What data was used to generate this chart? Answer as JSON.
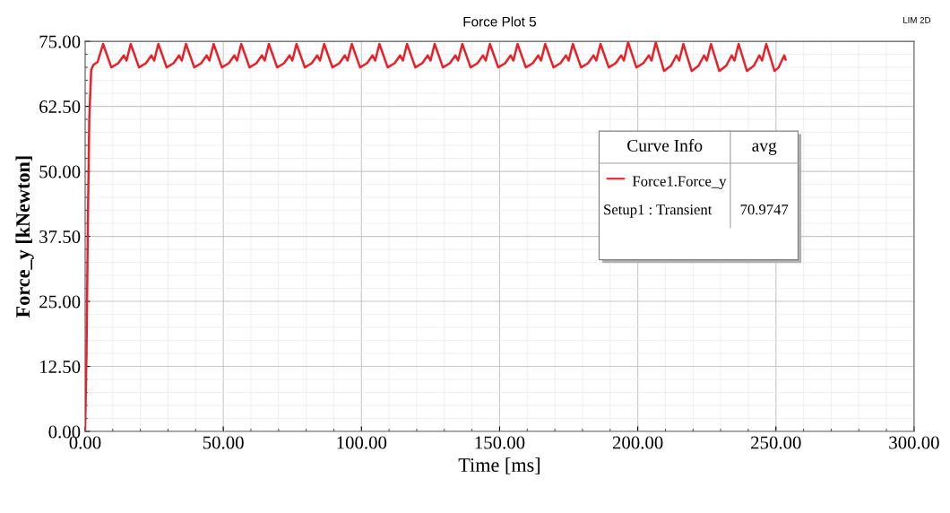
{
  "chart_data": {
    "type": "line",
    "title": "Force Plot 5",
    "xlabel": "Time [ms]",
    "ylabel": "Force_y [kNewton]",
    "annotations": [
      "LIM 2D",
      "Curve Info",
      "avg",
      "Setup1 : Transient",
      "70.9747"
    ],
    "legend": "right",
    "grid": true,
    "xlim": [
      0,
      300
    ],
    "ylim": [
      0,
      75
    ],
    "xticks": [
      {
        "value": 0,
        "label": "0.00"
      },
      {
        "value": 50,
        "label": "50.00"
      },
      {
        "value": 100,
        "label": "100.00"
      },
      {
        "value": 150,
        "label": "150.00"
      },
      {
        "value": 200,
        "label": "200.00"
      },
      {
        "value": 250,
        "label": "250.00"
      },
      {
        "value": 300,
        "label": "300.00"
      }
    ],
    "yticks": [
      {
        "value": 0,
        "label": "0.00"
      },
      {
        "value": 12.5,
        "label": "12.50"
      },
      {
        "value": 25,
        "label": "25.00"
      },
      {
        "value": 37.5,
        "label": "37.50"
      },
      {
        "value": 50,
        "label": "50.00"
      },
      {
        "value": 62.5,
        "label": "62.50"
      },
      {
        "value": 75,
        "label": "75.00"
      }
    ],
    "series": [
      {
        "name": "Force1.Force_y",
        "color": "#e8202a",
        "x": [
          0,
          0.5,
          1,
          1.5,
          2.2,
          3,
          4.5,
          6.5,
          9.5,
          12,
          14,
          15,
          16.5,
          19.5,
          22,
          24,
          25,
          26.5,
          29.5,
          32,
          34,
          35,
          36.5,
          39.5,
          42,
          44,
          45,
          46.5,
          49.5,
          52,
          54,
          55,
          56.5,
          59.5,
          62,
          64,
          65,
          66.5,
          69.5,
          72,
          74,
          75,
          76.5,
          79.5,
          82,
          84,
          85,
          86.5,
          89.5,
          92,
          94,
          95,
          96.5,
          99.5,
          102,
          104,
          105,
          106.5,
          109.5,
          112,
          114,
          115,
          116.5,
          119.5,
          122,
          124,
          125,
          126.5,
          129.5,
          132,
          134,
          135,
          136.5,
          139.5,
          142,
          144,
          145,
          146.5,
          149.5,
          152,
          154,
          155,
          156.5,
          159.5,
          162,
          164,
          165,
          166.5,
          169.5,
          172,
          174,
          175,
          176.5,
          179.5,
          182,
          184,
          185,
          186.5,
          189.5,
          192,
          194,
          195,
          196.5,
          199.5,
          202,
          204,
          205,
          206.5,
          209.5,
          212,
          214,
          215,
          216.5,
          219.5,
          222,
          224,
          225,
          226.5,
          229.5,
          232,
          234,
          235,
          236.5,
          239.5,
          242,
          244,
          245,
          246.5,
          249.5,
          251,
          253,
          253.5
        ],
        "values": [
          0,
          15,
          40,
          60,
          69.5,
          70.5,
          71,
          74.5,
          70,
          70.8,
          72.3,
          71.3,
          74.5,
          70,
          70.8,
          72.3,
          71.3,
          74.5,
          70,
          70.8,
          72.3,
          71.3,
          74.5,
          70,
          70.8,
          72.3,
          71.3,
          74.5,
          70,
          70.8,
          72.3,
          71.3,
          74.5,
          70,
          70.8,
          72.3,
          71.3,
          74.5,
          70,
          70.8,
          72.3,
          71.3,
          74.5,
          70,
          70.8,
          72.3,
          71.3,
          74.5,
          70,
          70.8,
          72.3,
          71.3,
          74.5,
          70,
          70.8,
          72.3,
          71.3,
          74.5,
          70,
          70.8,
          72.3,
          71.3,
          74.5,
          70,
          70.8,
          72.3,
          71.3,
          74.5,
          70,
          70.8,
          72.3,
          71.3,
          74.5,
          70,
          70.8,
          72.3,
          71.3,
          74.5,
          70,
          70.8,
          72.3,
          71.3,
          74.5,
          70,
          70.8,
          72.3,
          71.3,
          74.5,
          70,
          70.8,
          72.3,
          71.3,
          74.5,
          70,
          70.8,
          72.3,
          71.3,
          74.5,
          70,
          70.8,
          72.3,
          71.3,
          74.8,
          70,
          70.8,
          72.3,
          71.3,
          74.8,
          69.3,
          70.3,
          72.3,
          71.3,
          74.5,
          69.3,
          70.3,
          72.3,
          71.3,
          74.5,
          69.3,
          70.3,
          72.3,
          71.3,
          74.5,
          69.3,
          70.3,
          72.3,
          71.3,
          74.5,
          69.3,
          70,
          72.3,
          71.5
        ]
      }
    ]
  }
}
